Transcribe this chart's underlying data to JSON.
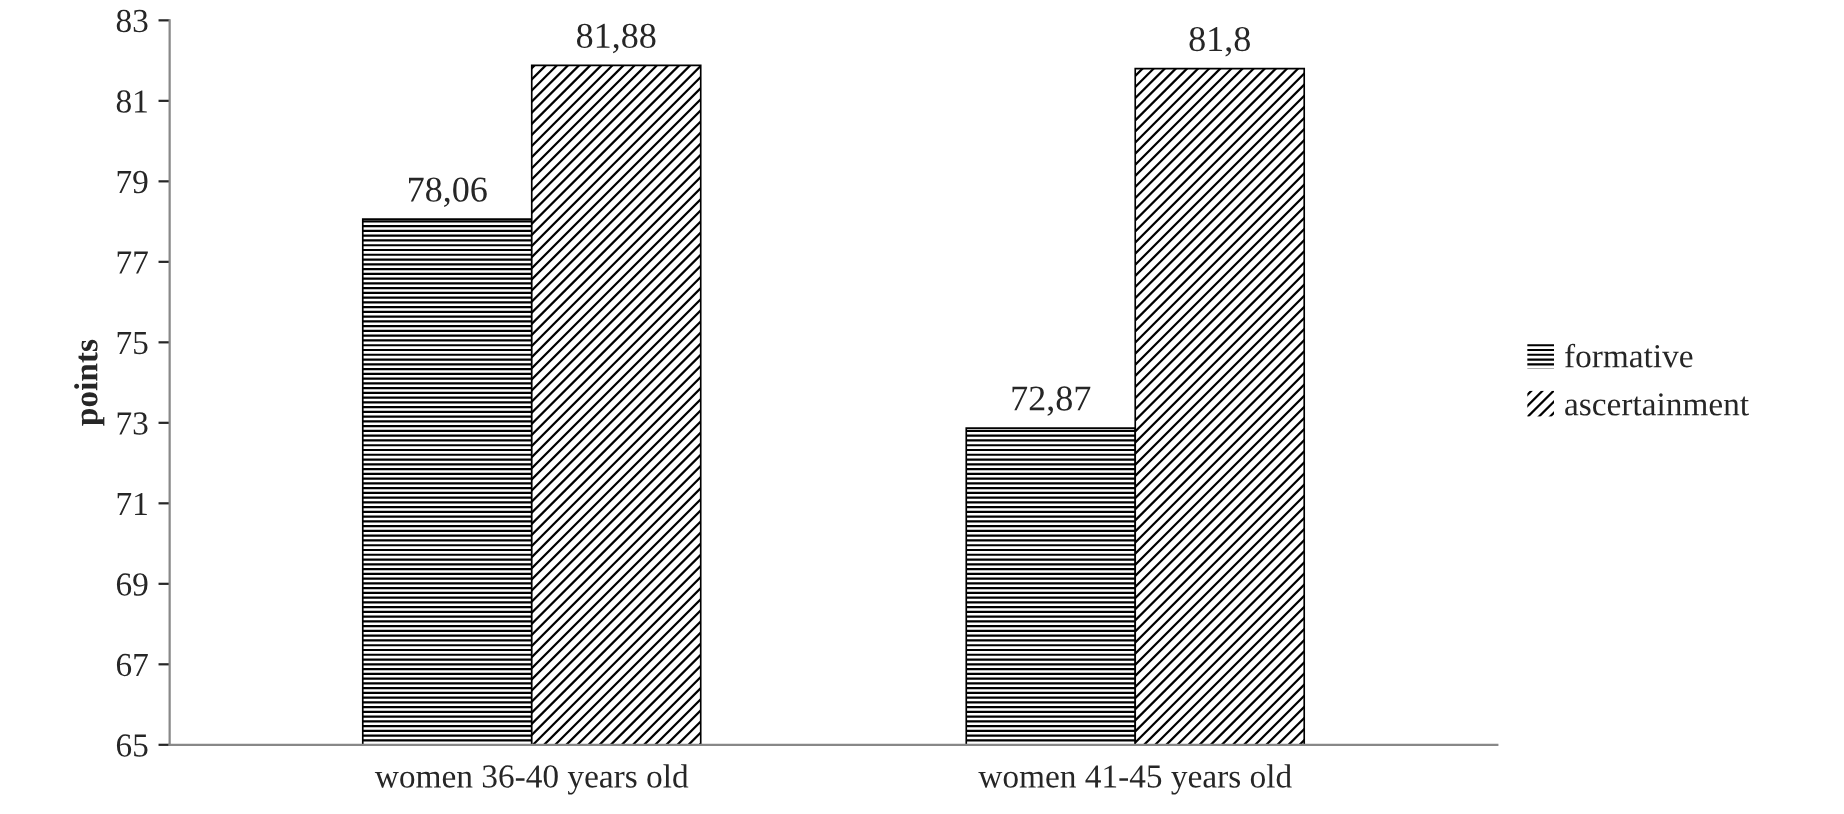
{
  "chart_data": {
    "type": "bar",
    "ylabel": "points",
    "categories": [
      "women 36-40 years old",
      "women 41-45 years old"
    ],
    "series": [
      {
        "name": "formative",
        "color": "#000000",
        "values": [
          78.06,
          72.87
        ],
        "value_labels": [
          "78,06",
          "72,87"
        ]
      },
      {
        "name": "ascertainment",
        "color": "#000000",
        "values": [
          81.88,
          81.8
        ],
        "value_labels": [
          "81,88",
          "81,8"
        ]
      }
    ],
    "ylim": [
      65,
      83
    ],
    "yticks": [
      65,
      67,
      69,
      71,
      73,
      75,
      77,
      79,
      81,
      83
    ],
    "grid": false,
    "legend": "right"
  }
}
